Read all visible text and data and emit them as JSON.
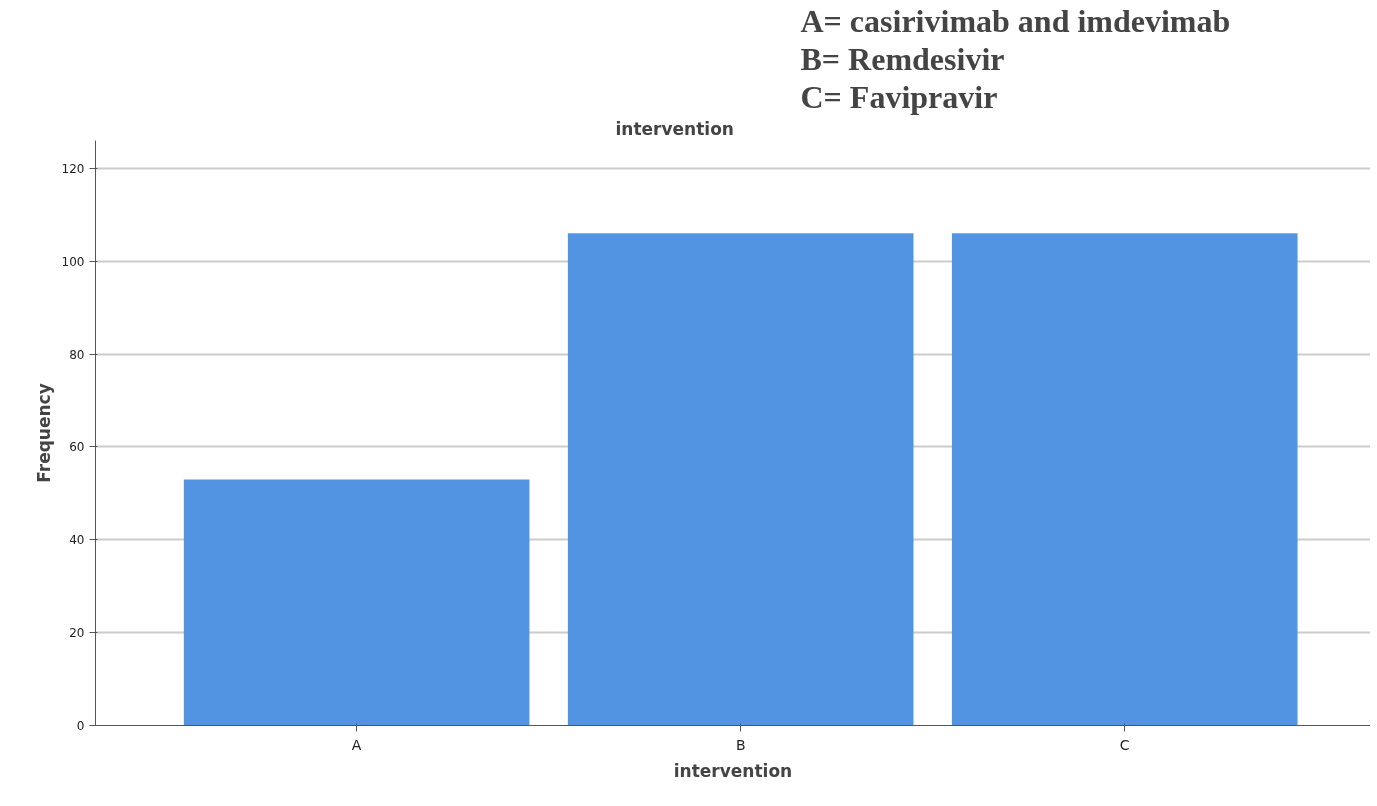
{
  "chart_data": {
    "type": "bar",
    "title": "intervention",
    "xlabel": "intervention",
    "ylabel": "Frequency",
    "categories": [
      "A",
      "B",
      "C"
    ],
    "values": [
      53,
      106,
      106
    ],
    "color": "#5294e2",
    "ylim": [
      0,
      126
    ],
    "yticks": [
      0,
      20,
      40,
      60,
      80,
      100,
      120
    ],
    "grid": "y",
    "annotations": [
      "A= casirivimab and imdevimab",
      "B= Remdesivir",
      "C= Favipravir"
    ]
  }
}
